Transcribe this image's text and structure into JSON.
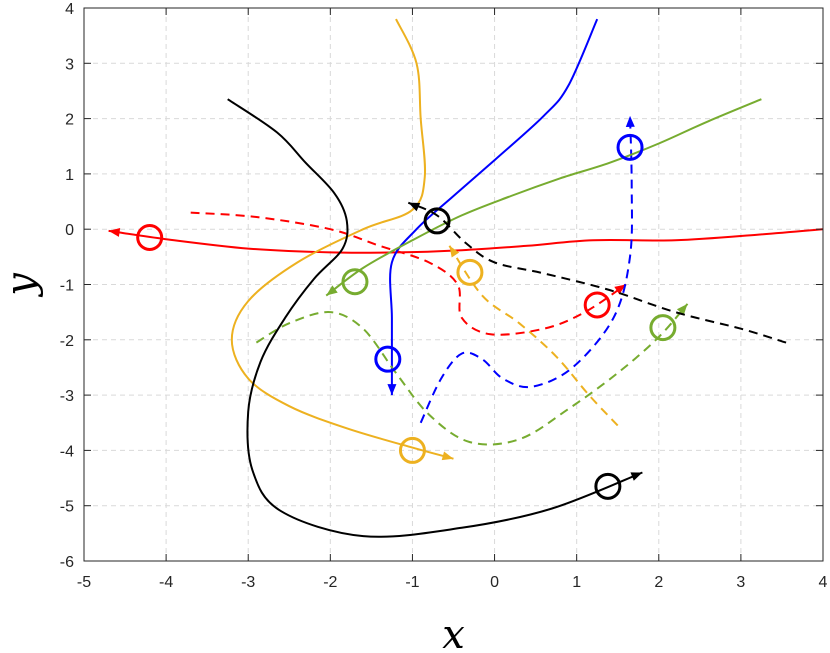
{
  "chart_data": {
    "type": "line",
    "title": "",
    "xlabel": "x",
    "ylabel": "y",
    "xlim": [
      -5,
      4
    ],
    "ylim": [
      -6,
      4
    ],
    "xticks": [
      -5,
      -4,
      -3,
      -2,
      -1,
      0,
      1,
      2,
      3,
      4
    ],
    "yticks": [
      -6,
      -5,
      -4,
      -3,
      -2,
      -1,
      0,
      1,
      2,
      3,
      4
    ],
    "grid": true,
    "legend": "none",
    "series": [
      {
        "color": "#ff0000",
        "style": "solid",
        "arrow": true,
        "marker": [
          -4.2,
          -0.15
        ],
        "points": [
          [
            4.0,
            0.0
          ],
          [
            3.2,
            -0.1
          ],
          [
            2.2,
            -0.2
          ],
          [
            1.2,
            -0.2
          ],
          [
            0.4,
            -0.3
          ],
          [
            -0.4,
            -0.38
          ],
          [
            -1.2,
            -0.42
          ],
          [
            -2.0,
            -0.42
          ],
          [
            -3.0,
            -0.35
          ],
          [
            -4.0,
            -0.18
          ],
          [
            -4.7,
            -0.03
          ]
        ]
      },
      {
        "color": "#ff0000",
        "style": "dashed",
        "arrow": true,
        "marker": [
          1.25,
          -1.37
        ],
        "points": [
          [
            -3.7,
            0.3
          ],
          [
            -2.9,
            0.22
          ],
          [
            -2.0,
            0.0
          ],
          [
            -1.4,
            -0.3
          ],
          [
            -0.8,
            -0.6
          ],
          [
            -0.45,
            -1.0
          ],
          [
            -0.4,
            -1.6
          ],
          [
            -0.05,
            -1.9
          ],
          [
            0.6,
            -1.8
          ],
          [
            1.1,
            -1.5
          ],
          [
            1.6,
            -1.0
          ]
        ]
      },
      {
        "color": "#0000ff",
        "style": "solid",
        "arrow": true,
        "marker": [
          -1.3,
          -2.35
        ],
        "points": [
          [
            1.25,
            3.8
          ],
          [
            0.9,
            2.6
          ],
          [
            0.6,
            2.05
          ],
          [
            0.0,
            1.25
          ],
          [
            -0.5,
            0.6
          ],
          [
            -0.95,
            0.0
          ],
          [
            -1.25,
            -0.6
          ],
          [
            -1.25,
            -1.6
          ],
          [
            -1.25,
            -2.6
          ],
          [
            -1.25,
            -3.0
          ]
        ]
      },
      {
        "color": "#0000ff",
        "style": "dashed",
        "arrow": true,
        "marker": [
          1.65,
          1.48
        ],
        "points": [
          [
            -0.9,
            -3.5
          ],
          [
            -0.65,
            -2.7
          ],
          [
            -0.4,
            -2.25
          ],
          [
            -0.15,
            -2.35
          ],
          [
            0.1,
            -2.7
          ],
          [
            0.45,
            -2.85
          ],
          [
            0.95,
            -2.5
          ],
          [
            1.45,
            -1.6
          ],
          [
            1.65,
            -0.5
          ],
          [
            1.67,
            0.8
          ],
          [
            1.65,
            2.05
          ]
        ]
      },
      {
        "color": "#edb120",
        "style": "solid",
        "arrow": true,
        "marker": [
          -1.0,
          -4.0
        ],
        "points": [
          [
            -1.2,
            3.8
          ],
          [
            -0.95,
            3.0
          ],
          [
            -0.9,
            2.0
          ],
          [
            -0.85,
            0.95
          ],
          [
            -1.0,
            0.35
          ],
          [
            -1.6,
            0.0
          ],
          [
            -2.4,
            -0.6
          ],
          [
            -3.0,
            -1.3
          ],
          [
            -3.2,
            -2.0
          ],
          [
            -3.0,
            -2.7
          ],
          [
            -2.5,
            -3.2
          ],
          [
            -1.8,
            -3.6
          ],
          [
            -1.0,
            -3.95
          ],
          [
            -0.5,
            -4.15
          ]
        ]
      },
      {
        "color": "#edb120",
        "style": "dashed",
        "arrow": true,
        "marker": [
          -0.3,
          -0.78
        ],
        "points": [
          [
            1.5,
            -3.55
          ],
          [
            1.15,
            -3.0
          ],
          [
            0.75,
            -2.3
          ],
          [
            0.3,
            -1.7
          ],
          [
            -0.15,
            -1.2
          ],
          [
            -0.55,
            -0.3
          ]
        ]
      },
      {
        "color": "#77ac30",
        "style": "solid",
        "arrow": true,
        "marker": [
          -1.7,
          -0.95
        ],
        "points": [
          [
            3.25,
            2.35
          ],
          [
            2.6,
            1.95
          ],
          [
            2.0,
            1.55
          ],
          [
            1.4,
            1.2
          ],
          [
            0.8,
            0.92
          ],
          [
            0.2,
            0.6
          ],
          [
            -0.4,
            0.25
          ],
          [
            -1.0,
            -0.2
          ],
          [
            -1.6,
            -0.7
          ],
          [
            -2.05,
            -1.2
          ]
        ]
      },
      {
        "color": "#77ac30",
        "style": "dashed",
        "arrow": true,
        "marker": [
          2.05,
          -1.78
        ],
        "points": [
          [
            -2.9,
            -2.05
          ],
          [
            -2.5,
            -1.7
          ],
          [
            -2.0,
            -1.5
          ],
          [
            -1.6,
            -1.8
          ],
          [
            -1.2,
            -2.6
          ],
          [
            -0.8,
            -3.35
          ],
          [
            -0.3,
            -3.85
          ],
          [
            0.3,
            -3.8
          ],
          [
            0.9,
            -3.25
          ],
          [
            1.5,
            -2.6
          ],
          [
            2.0,
            -1.95
          ],
          [
            2.35,
            -1.35
          ]
        ]
      },
      {
        "color": "#000000",
        "style": "solid",
        "arrow": true,
        "marker": [
          1.38,
          -4.65
        ],
        "points": [
          [
            -3.25,
            2.35
          ],
          [
            -2.65,
            1.75
          ],
          [
            -2.3,
            1.2
          ],
          [
            -1.95,
            0.65
          ],
          [
            -1.8,
            0.15
          ],
          [
            -1.85,
            -0.35
          ],
          [
            -2.2,
            -0.9
          ],
          [
            -2.55,
            -1.6
          ],
          [
            -2.85,
            -2.4
          ],
          [
            -3.0,
            -3.3
          ],
          [
            -2.95,
            -4.35
          ],
          [
            -2.6,
            -5.1
          ],
          [
            -1.6,
            -5.55
          ],
          [
            -0.4,
            -5.4
          ],
          [
            0.7,
            -5.05
          ],
          [
            1.8,
            -4.4
          ]
        ]
      },
      {
        "color": "#000000",
        "style": "dashed",
        "arrow": true,
        "marker": [
          -0.7,
          0.15
        ],
        "points": [
          [
            3.55,
            -2.05
          ],
          [
            3.0,
            -1.8
          ],
          [
            2.2,
            -1.5
          ],
          [
            1.4,
            -1.1
          ],
          [
            0.6,
            -0.8
          ],
          [
            0.0,
            -0.6
          ],
          [
            -0.35,
            -0.25
          ],
          [
            -0.7,
            0.25
          ],
          [
            -1.05,
            0.48
          ]
        ]
      }
    ]
  }
}
